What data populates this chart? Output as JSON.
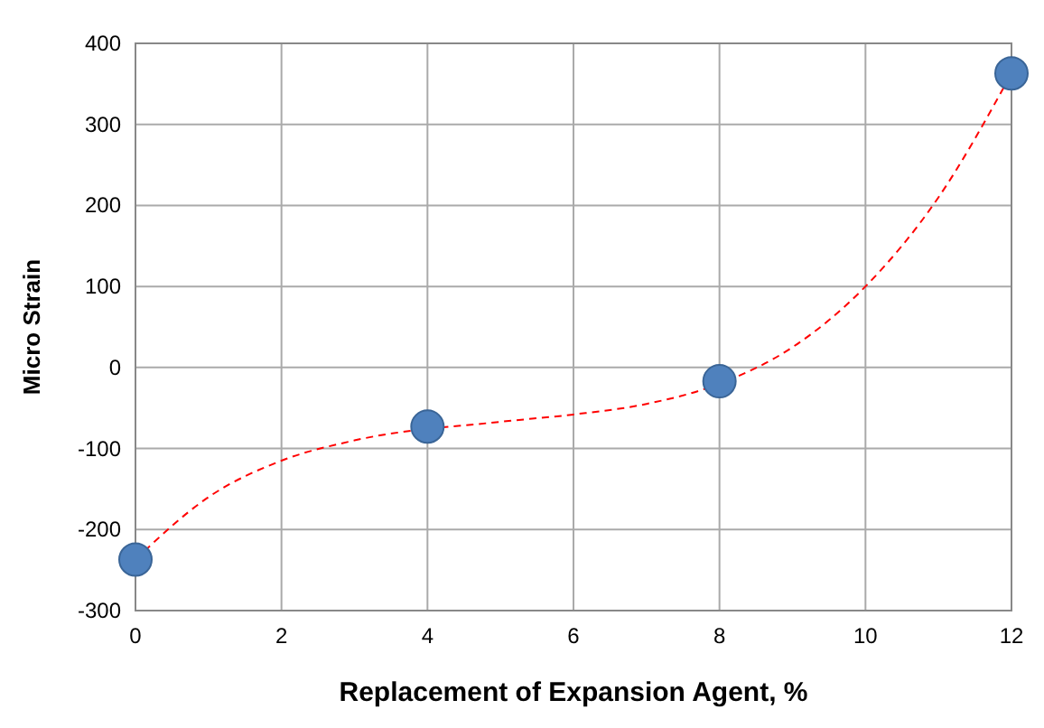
{
  "chart_data": {
    "type": "scatter",
    "xlabel": "Replacement of Expansion Agent, %",
    "ylabel": "Micro Strain",
    "xlim": [
      0,
      12
    ],
    "xticks": [
      0,
      2,
      4,
      6,
      8,
      10,
      12
    ],
    "ylim": [
      -300,
      400
    ],
    "yticks": [
      -300,
      -200,
      -100,
      0,
      100,
      200,
      300,
      400
    ],
    "grid": true,
    "series": [
      {
        "type": "line",
        "color": "#ff0000",
        "line_style": "dashed",
        "marker": "none",
        "x": [
          0,
          1,
          2,
          3,
          4,
          5,
          6,
          7,
          8,
          9,
          10,
          11,
          12
        ],
        "values": [
          -237,
          -160,
          -115,
          -90,
          null,
          -67,
          -58,
          -45,
          -20,
          25,
          100,
          210,
          363
        ]
      },
      {
        "color": "#4f81bd",
        "marker": "circle",
        "x": [
          0,
          4,
          8,
          12
        ],
        "values": [
          -237,
          -73,
          -17,
          363
        ]
      }
    ]
  }
}
